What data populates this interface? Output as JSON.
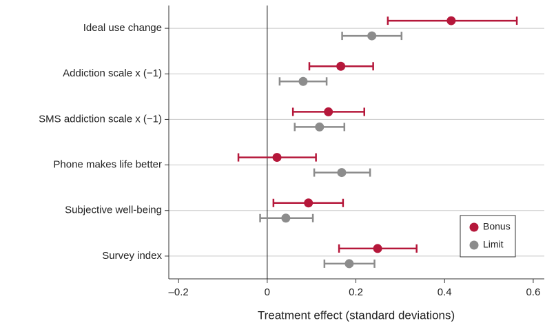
{
  "chart_data": {
    "type": "dot-errorbar",
    "categories": [
      "Ideal use change",
      "Addiction scale x (−1)",
      "SMS addiction scale x (−1)",
      "Phone makes life better",
      "Subjective well-being",
      "Survey index"
    ],
    "series": [
      {
        "name": "Bonus",
        "color": "#b5173a",
        "values": [
          0.415,
          0.166,
          0.138,
          0.022,
          0.093,
          0.249
        ],
        "ci_low": [
          0.272,
          0.095,
          0.058,
          -0.065,
          0.014,
          0.162
        ],
        "ci_high": [
          0.563,
          0.239,
          0.219,
          0.11,
          0.171,
          0.337
        ]
      },
      {
        "name": "Limit",
        "color": "#8c8c8c",
        "values": [
          0.236,
          0.081,
          0.118,
          0.168,
          0.042,
          0.185
        ],
        "ci_low": [
          0.169,
          0.028,
          0.062,
          0.106,
          -0.016,
          0.129
        ],
        "ci_high": [
          0.303,
          0.134,
          0.174,
          0.232,
          0.103,
          0.242
        ]
      }
    ],
    "xlabel": "Treatment effect (standard deviations)",
    "xlim": [
      -0.222,
      0.625
    ],
    "xticks": [
      {
        "value": -0.2,
        "label": "–0.2"
      },
      0,
      0.2,
      0.4,
      0.6
    ],
    "grid": true,
    "legend": "lower-right"
  }
}
